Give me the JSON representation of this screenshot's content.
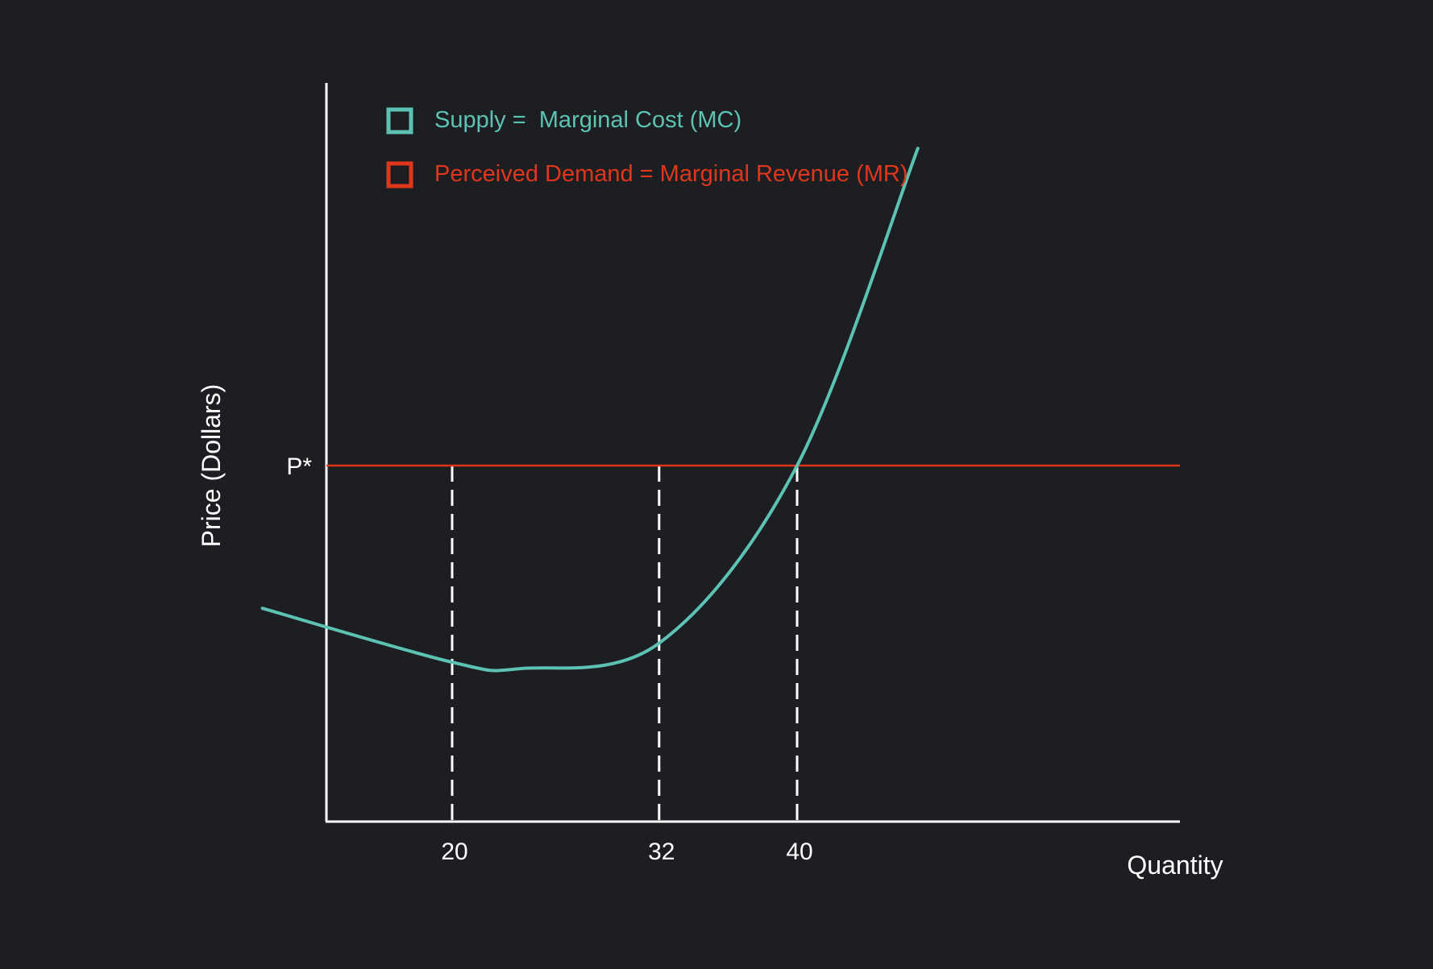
{
  "chart_data": {
    "type": "line",
    "title": "",
    "xlabel": "Quantity",
    "ylabel": "Price (Dollars)",
    "x_ticks": [
      20,
      32,
      40
    ],
    "y_ticks": [
      "P*"
    ],
    "legend_position": "top-left",
    "grid": false,
    "series": [
      {
        "name": "Supply =  Marginal Cost (MC)",
        "color": "#5cc3b4",
        "kind": "curve",
        "x": [
          9,
          20,
          24,
          32,
          40,
          47
        ],
        "y": [
          0.55,
          0.38,
          0.36,
          0.44,
          1.0,
          2.0
        ]
      },
      {
        "name": "Perceived Demand = Marginal Revenue (MR)",
        "color": "#e0361c",
        "kind": "horizontal",
        "y": 1.0,
        "label": "P*"
      }
    ],
    "reference_lines": [
      {
        "x": 20,
        "style": "dashed"
      },
      {
        "x": 32,
        "style": "dashed"
      },
      {
        "x": 40,
        "style": "dashed"
      }
    ],
    "colors": {
      "background": "#1d1e21",
      "axis": "#ffffff",
      "supply": "#5cc3b4",
      "demand": "#e0361c",
      "text": "#ffffff"
    }
  }
}
